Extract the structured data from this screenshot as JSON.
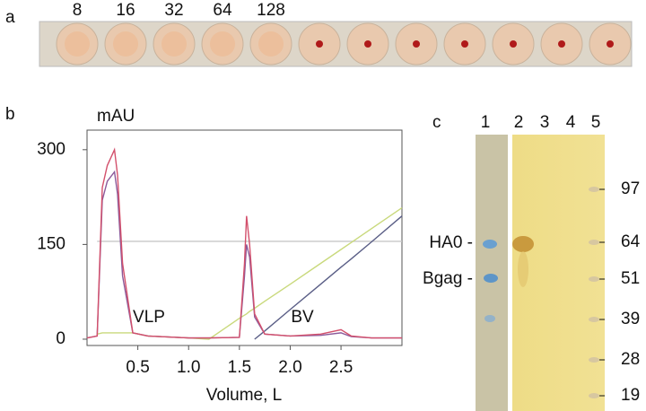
{
  "panel_labels": [
    "a",
    "b",
    "c"
  ],
  "panel_a": {
    "dilutions": [
      "8",
      "16",
      "32",
      "64",
      "128"
    ]
  },
  "chart_data": {
    "type": "line",
    "y_label": "mAU",
    "x_label": "Volume, L",
    "annotations": [
      "VLP",
      "BV"
    ],
    "x": [
      0,
      0.1,
      0.15,
      0.2,
      0.27,
      0.3,
      0.35,
      0.45,
      0.6,
      1.0,
      1.2,
      1.5,
      1.55,
      1.57,
      1.6,
      1.65,
      1.75,
      2.0,
      2.3,
      2.5,
      2.6,
      2.8,
      3.1
    ],
    "series": [
      {
        "color": "#c8c8c8",
        "values": [
          null,
          155,
          155,
          155,
          155,
          155,
          155,
          155,
          155,
          155,
          155,
          155,
          155,
          155,
          155,
          155,
          155,
          155,
          155,
          155,
          155,
          155,
          155
        ]
      },
      {
        "color": "#c9d97c",
        "values": [
          null,
          8,
          10,
          10,
          10,
          10,
          10,
          10,
          5,
          2,
          0,
          33,
          38,
          40,
          44,
          49,
          60,
          87,
          120,
          142,
          153,
          175,
          208
        ]
      },
      {
        "color": "#5a5e86",
        "values": [
          null,
          null,
          null,
          null,
          null,
          null,
          null,
          null,
          null,
          null,
          null,
          null,
          null,
          null,
          null,
          0,
          13,
          47,
          87,
          114,
          127,
          154,
          195
        ]
      },
      {
        "color": "#8b5a9a",
        "values": [
          2,
          5,
          220,
          250,
          265,
          230,
          100,
          10,
          5,
          2,
          2,
          3,
          100,
          150,
          130,
          35,
          8,
          5,
          6,
          10,
          4,
          2,
          2
        ]
      },
      {
        "color": "#d3506c",
        "values": [
          2,
          5,
          240,
          275,
          300,
          260,
          120,
          10,
          5,
          2,
          2,
          3,
          120,
          195,
          150,
          40,
          8,
          5,
          8,
          15,
          5,
          2,
          2
        ]
      }
    ],
    "xlim": [
      0,
      3.1
    ],
    "ylim": [
      -10,
      331
    ],
    "xticks": [
      0.5,
      {
        "value": 1,
        "label": "1.0"
      },
      1.5,
      {
        "value": 2,
        "label": "2.0"
      },
      2.5
    ],
    "yticks": [
      0,
      150,
      300
    ]
  },
  "panel_c": {
    "lanes": [
      "1",
      "2",
      "3",
      "4",
      "5"
    ],
    "bands": [
      "HA0 -",
      "Bgag -"
    ],
    "markers": [
      "97",
      "64",
      "51",
      "39",
      "28",
      "19"
    ]
  }
}
